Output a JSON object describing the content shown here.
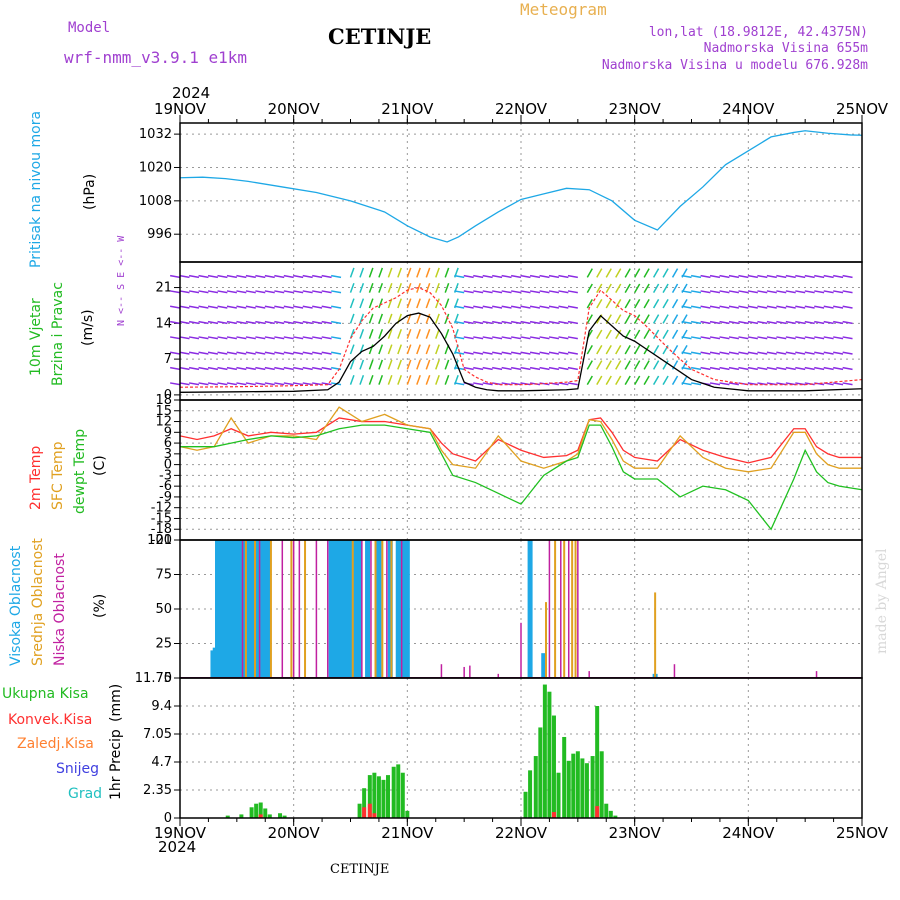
{
  "header": {
    "model_label": "Model",
    "model_name": "wrf-nmm_v3.9.1 e1km",
    "title": "CETINJE",
    "meteogram": "Meteogram",
    "lonlat": "lon,lat (18.9812E, 42.4375N)",
    "elevation": "Nadmorska Visina 655m",
    "model_elevation": "Nadmorska Visina u modelu 676.928m",
    "year_top": "2024",
    "year_bottom": "2024",
    "footer_station": "CETINJE",
    "credit": "made by Angel"
  },
  "colors": {
    "pressure": "#1ea8e6",
    "wind_speed": "#000000",
    "gust": "#ff3030",
    "temp2m": "#ff3030",
    "sfc_temp": "#e0a020",
    "dewpoint": "#20c020",
    "cloud_high": "#1ea8e6",
    "cloud_mid": "#e0a020",
    "cloud_low": "#c020a0",
    "precip_total": "#22bb22",
    "precip_conv": "#ff3030",
    "label_purple": "#a040d0",
    "label_gold": "#e8b050"
  },
  "chart_data": [
    {
      "type": "line",
      "name": "pressure",
      "ylabel_a": "Pritisak na nivou mora",
      "ylabel_b": "(hPa)",
      "ylim": [
        986,
        1036
      ],
      "yticks": [
        "996",
        "1008",
        "1020",
        "1032"
      ],
      "xlim": [
        0,
        6
      ],
      "xticks_top": [
        "19NOV",
        "20NOV",
        "21NOV",
        "22NOV",
        "23NOV",
        "24NOV",
        "25NOV"
      ],
      "grid": true,
      "series": [
        {
          "x": [
            0,
            0.2,
            0.4,
            0.6,
            0.9,
            1.2,
            1.5,
            1.8,
            2.0,
            2.2,
            2.35,
            2.45,
            2.6,
            2.8,
            3.0,
            3.2,
            3.4,
            3.6,
            3.8,
            4.0,
            4.2,
            4.4,
            4.6,
            4.8,
            5.0,
            5.2,
            5.4,
            5.5,
            5.7,
            5.9,
            6.0
          ],
          "y": [
            1016.3,
            1016.5,
            1016,
            1015,
            1013,
            1011,
            1008,
            1004,
            999,
            995,
            993.2,
            995,
            999,
            1004,
            1008.5,
            1010.5,
            1012.5,
            1012,
            1008,
            1001,
            997.5,
            1006,
            1013,
            1021,
            1026,
            1031,
            1032.6,
            1033.2,
            1032.3,
            1031.7,
            1031.6
          ]
        }
      ]
    },
    {
      "type": "line",
      "name": "wind",
      "ylabel_a": "10m Vjetar",
      "ylabel_b": "Brzina i Pravac",
      "ylabel_c": "(m/s)",
      "ylim": [
        -1,
        26
      ],
      "yticks": [
        "0",
        "7",
        "14",
        "21"
      ],
      "compass": "N <-- S E <-- W",
      "grid": true,
      "series": [
        {
          "name": "speed",
          "x": [
            0,
            0.5,
            1,
            1.3,
            1.4,
            1.5,
            1.6,
            1.7,
            1.8,
            1.9,
            2.0,
            2.1,
            2.2,
            2.3,
            2.4,
            2.5,
            2.6,
            2.7,
            2.8,
            3.0,
            3.2,
            3.4,
            3.5,
            3.6,
            3.7,
            3.8,
            3.9,
            4.0,
            4.1,
            4.3,
            4.5,
            4.7,
            5.0,
            5.5,
            6.0
          ],
          "y": [
            0.5,
            0.6,
            0.7,
            1.0,
            2.5,
            6.5,
            8.5,
            9.5,
            11.5,
            14.0,
            15.5,
            16.0,
            15.2,
            12.0,
            8.0,
            2.5,
            1.5,
            1.0,
            0.8,
            0.8,
            0.9,
            1.0,
            1.2,
            12.5,
            15.5,
            13.5,
            11.5,
            10.5,
            9.0,
            6.0,
            3.0,
            1.5,
            0.8,
            0.8,
            1.2
          ]
        },
        {
          "name": "gust",
          "x": [
            0,
            0.5,
            1,
            1.3,
            1.4,
            1.5,
            1.6,
            1.7,
            1.8,
            1.9,
            2.0,
            2.1,
            2.2,
            2.3,
            2.4,
            2.5,
            2.6,
            2.7,
            2.8,
            3.0,
            3.2,
            3.4,
            3.5,
            3.6,
            3.7,
            3.8,
            3.9,
            4.0,
            4.1,
            4.3,
            4.5,
            4.7,
            5.0,
            5.5,
            6.0
          ],
          "y": [
            1.5,
            1.6,
            1.8,
            2.0,
            5.0,
            11.0,
            14.5,
            17.0,
            18.0,
            19.0,
            20.5,
            21.0,
            20.0,
            17.5,
            13.0,
            5.0,
            3.5,
            2.5,
            2.0,
            2.0,
            2.2,
            2.5,
            2.8,
            17.0,
            20.5,
            18.5,
            16.5,
            15.5,
            13.5,
            9.0,
            5.0,
            3.0,
            2.0,
            2.0,
            3.0
          ]
        }
      ]
    },
    {
      "type": "line",
      "name": "temperature",
      "ylabel_a": "2m Temp",
      "ylabel_b": "SFC Temp",
      "ylabel_c": "dewpt Temp",
      "ylabel_d": "(C)",
      "ylim": [
        -21,
        18
      ],
      "yticks": [
        "18",
        "15",
        "12",
        "9",
        "6",
        "3",
        "0",
        "-3",
        "-6",
        "-9",
        "-12",
        "-15",
        "-18",
        "-21"
      ],
      "grid": true,
      "series": [
        {
          "name": "2m",
          "x": [
            0,
            0.15,
            0.3,
            0.45,
            0.6,
            0.8,
            1.0,
            1.2,
            1.4,
            1.6,
            1.8,
            2.0,
            2.2,
            2.3,
            2.4,
            2.6,
            2.8,
            3.0,
            3.2,
            3.4,
            3.5,
            3.6,
            3.7,
            3.8,
            3.9,
            4.0,
            4.2,
            4.4,
            4.6,
            4.8,
            5.0,
            5.2,
            5.4,
            5.5,
            5.6,
            5.7,
            5.8,
            6.0
          ],
          "y": [
            8,
            7,
            8,
            10,
            8,
            9,
            8.5,
            9,
            13,
            12,
            12,
            11,
            10,
            6,
            3,
            1,
            7,
            4,
            2,
            2.5,
            4,
            12.5,
            13,
            9,
            4,
            2,
            1,
            7,
            4,
            2,
            0.5,
            2,
            10,
            10,
            5,
            3,
            2,
            2
          ]
        },
        {
          "name": "sfc",
          "x": [
            0,
            0.15,
            0.3,
            0.45,
            0.6,
            0.8,
            1.0,
            1.2,
            1.4,
            1.6,
            1.8,
            2.0,
            2.2,
            2.3,
            2.4,
            2.6,
            2.8,
            3.0,
            3.2,
            3.4,
            3.5,
            3.6,
            3.7,
            3.8,
            3.9,
            4.0,
            4.2,
            4.4,
            4.6,
            4.8,
            5.0,
            5.2,
            5.4,
            5.5,
            5.6,
            5.7,
            5.8,
            6.0
          ],
          "y": [
            5,
            4,
            5,
            13,
            6,
            8,
            8,
            7,
            16,
            12,
            14,
            11,
            10,
            4,
            0,
            -1,
            8,
            1,
            -1,
            1,
            3,
            12.5,
            12,
            7,
            1,
            -1,
            -1,
            8,
            2,
            -1,
            -2,
            -1,
            9,
            9,
            3,
            0,
            -1,
            -1
          ]
        },
        {
          "name": "dewpt",
          "x": [
            0,
            0.15,
            0.3,
            0.45,
            0.6,
            0.8,
            1.0,
            1.2,
            1.4,
            1.6,
            1.8,
            2.0,
            2.2,
            2.3,
            2.4,
            2.6,
            2.8,
            3.0,
            3.2,
            3.4,
            3.5,
            3.6,
            3.7,
            3.8,
            3.9,
            4.0,
            4.2,
            4.4,
            4.6,
            4.8,
            5.0,
            5.2,
            5.4,
            5.5,
            5.6,
            5.7,
            5.8,
            6.0
          ],
          "y": [
            5,
            5,
            5,
            6,
            7,
            8,
            7.5,
            8,
            10,
            11,
            11,
            10,
            9,
            3,
            -3,
            -5,
            -8,
            -11,
            -3,
            1,
            2,
            11,
            11,
            5,
            -2,
            -4,
            -4,
            -9,
            -6,
            -7,
            -10,
            -18,
            -4,
            4,
            -2,
            -5,
            -6,
            -7
          ]
        }
      ]
    },
    {
      "type": "bar",
      "name": "clouds",
      "ylabel_a": "Visoka Oblacnost",
      "ylabel_b": "Srednja Oblacnost",
      "ylabel_c": "Niska Oblacnost",
      "ylabel_d": "(%)",
      "ylim": [
        0,
        100
      ],
      "yticks": [
        "0",
        "25",
        "50",
        "75",
        "100"
      ],
      "grid": true,
      "series": [
        {
          "name": "Visoka",
          "color": "high",
          "x": [
            0.29,
            0.31,
            0.33,
            0.36,
            0.38,
            0.42,
            0.46,
            0.48,
            0.5,
            0.54,
            0.56,
            0.58,
            0.62,
            0.64,
            0.68,
            0.72,
            0.75,
            0.78,
            1.33,
            1.35,
            1.38,
            1.42,
            1.45,
            1.48,
            1.52,
            1.55,
            1.58,
            1.65,
            1.75,
            1.85,
            1.92,
            1.96,
            2.0,
            3.08,
            3.2,
            4.18
          ],
          "y": [
            20,
            22,
            100,
            100,
            100,
            100,
            100,
            100,
            100,
            100,
            100,
            100,
            100,
            100,
            100,
            100,
            100,
            100,
            100,
            100,
            100,
            100,
            100,
            100,
            100,
            100,
            100,
            100,
            100,
            100,
            100,
            100,
            100,
            100,
            18,
            3
          ]
        },
        {
          "name": "Srednja",
          "color": "mid",
          "x": [
            0.58,
            0.66,
            0.8,
            0.98,
            1.1,
            1.52,
            1.72,
            1.78,
            1.86,
            3.22,
            3.3,
            3.38,
            3.45,
            3.48,
            4.18
          ],
          "y": [
            100,
            100,
            100,
            100,
            100,
            100,
            100,
            100,
            100,
            55,
            100,
            100,
            100,
            100,
            62
          ]
        },
        {
          "name": "Niska",
          "color": "low",
          "x": [
            0.55,
            0.7,
            0.9,
            1.0,
            1.05,
            1.2,
            1.3,
            1.6,
            1.68,
            1.82,
            1.95,
            2.3,
            2.5,
            2.55,
            2.8,
            3.0,
            3.25,
            3.35,
            3.42,
            3.5,
            3.6,
            4.35,
            5.6
          ],
          "y": [
            100,
            100,
            100,
            100,
            100,
            100,
            100,
            100,
            100,
            100,
            100,
            10,
            8,
            9,
            3,
            40,
            100,
            100,
            100,
            100,
            5,
            10,
            5
          ]
        }
      ]
    },
    {
      "type": "bar",
      "name": "precip",
      "ylabel_a": "1hr Precip",
      "ylabel_b": "(mm)",
      "legend": [
        "Ukupna Kisa",
        "Konvek.Kisa",
        "Zaledj.Kisa",
        "Snijeg",
        "Grad"
      ],
      "ylim": [
        0,
        11.75
      ],
      "yticks": [
        "0",
        "2.35",
        "4.7",
        "7.05",
        "9.4",
        "11.75"
      ],
      "xticks_bottom": [
        "19NOV",
        "20NOV",
        "21NOV",
        "22NOV",
        "23NOV",
        "24NOV",
        "25NOV"
      ],
      "grid": true,
      "series": [
        {
          "name": "Ukupna Kisa",
          "x": [
            0.42,
            0.54,
            0.63,
            0.67,
            0.71,
            0.75,
            0.79,
            0.88,
            0.92,
            1.58,
            1.62,
            1.67,
            1.71,
            1.75,
            1.79,
            1.83,
            1.88,
            1.92,
            1.96,
            2.0,
            3.04,
            3.08,
            3.13,
            3.17,
            3.21,
            3.25,
            3.29,
            3.33,
            3.38,
            3.42,
            3.46,
            3.5,
            3.54,
            3.58,
            3.63,
            3.67,
            3.71,
            3.75,
            3.79,
            3.83
          ],
          "y": [
            0.2,
            0.3,
            0.9,
            1.2,
            1.3,
            0.8,
            0.3,
            0.4,
            0.2,
            1.2,
            2.5,
            3.6,
            3.8,
            3.5,
            3.2,
            3.6,
            4.3,
            4.5,
            3.8,
            0.6,
            2.2,
            4.0,
            5.2,
            7.6,
            11.2,
            10.6,
            8.6,
            3.8,
            6.8,
            4.8,
            5.4,
            5.6,
            5.0,
            4.6,
            5.2,
            9.4,
            5.6,
            1.2,
            0.6,
            0.2
          ]
        },
        {
          "name": "Konvek.Kisa",
          "x": [
            0.71,
            1.62,
            1.67,
            1.71,
            3.29,
            3.67
          ],
          "y": [
            0.3,
            0.9,
            1.2,
            0.4,
            0.5,
            1.0
          ]
        }
      ]
    }
  ]
}
